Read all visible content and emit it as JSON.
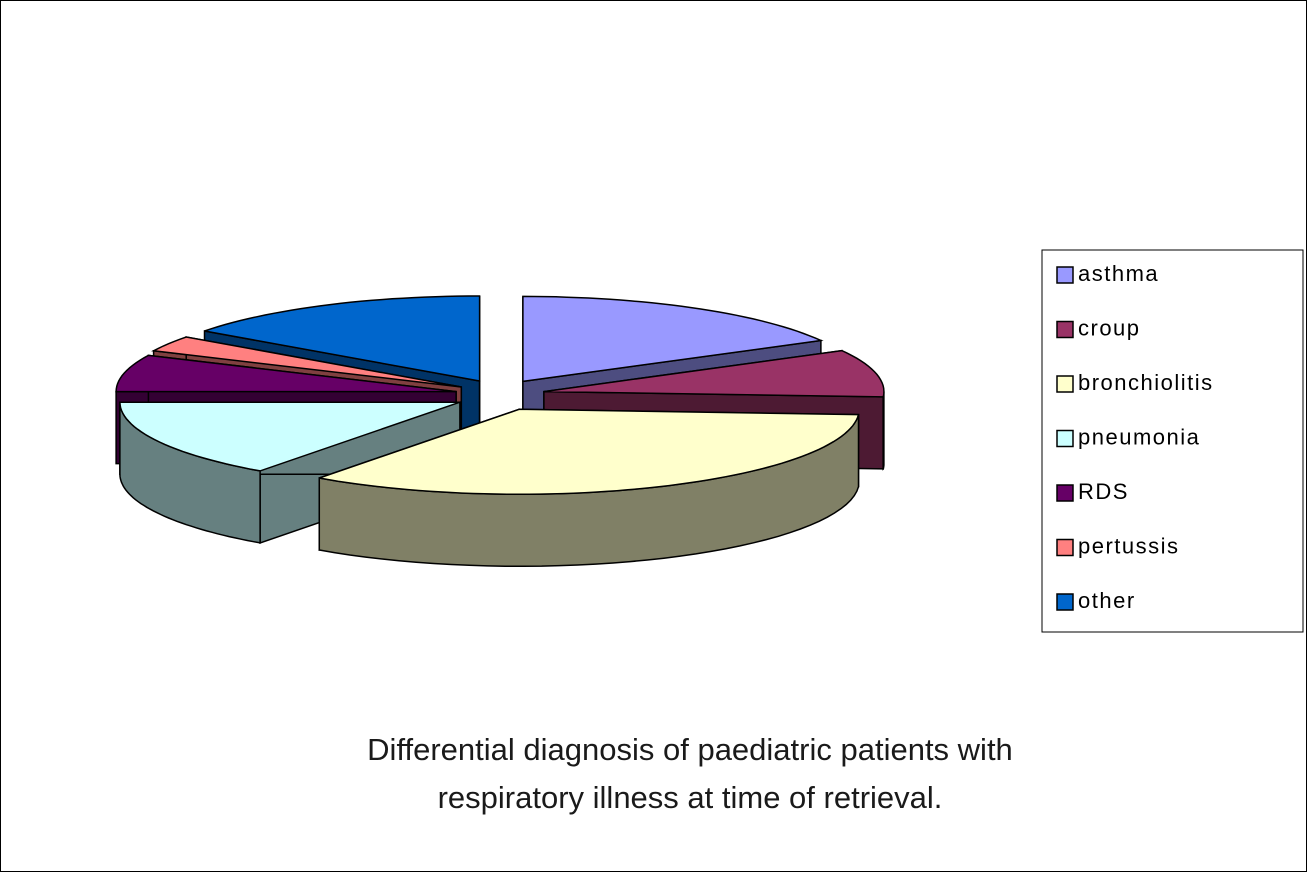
{
  "chart_data": {
    "type": "pie3d",
    "title": [
      "Differential diagnosis of  paediatric  patients with",
      "respiratory illness at time of  retrieval."
    ],
    "categories": [
      "asthma",
      "croup",
      "bronchiolitis",
      "pneumonia",
      "RDS",
      "pertussis",
      "other"
    ],
    "values": [
      17,
      9,
      34,
      15,
      7,
      3,
      15
    ],
    "colors": [
      "#9999ff",
      "#993366",
      "#ffffcc",
      "#ccffff",
      "#660066",
      "#ff8080",
      "#0066cc"
    ],
    "legend": "right"
  }
}
